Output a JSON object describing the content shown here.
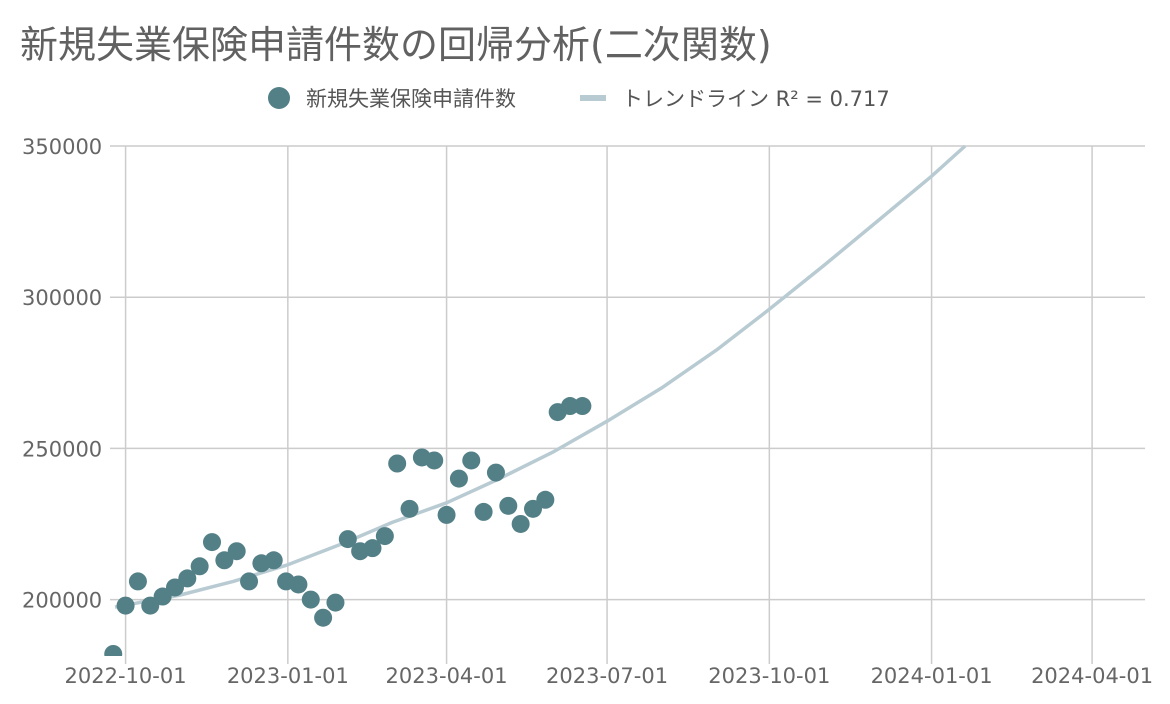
{
  "chart_data": {
    "type": "scatter",
    "title": "新規失業保険申請件数の回帰分析(二次関数)",
    "xlabel": "",
    "ylabel": "",
    "legend_position": "top",
    "grid": true,
    "x_axis_type": "date",
    "xlim": [
      "2022-09-25",
      "2024-05-01"
    ],
    "ylim": [
      182000,
      350000
    ],
    "y_ticks": [
      200000,
      250000,
      300000,
      350000
    ],
    "x_ticks": [
      "2022-10-01",
      "2023-01-01",
      "2023-04-01",
      "2023-07-01",
      "2023-10-01",
      "2024-01-01",
      "2024-04-01"
    ],
    "colors": {
      "points": "#537f87",
      "trendline": "#b9cbd2",
      "grid": "#cccccc"
    },
    "series": [
      {
        "name": "新規失業保険申請件数",
        "type": "scatter",
        "points": [
          {
            "x": "2022-09-24",
            "y": 182000
          },
          {
            "x": "2022-10-01",
            "y": 198000
          },
          {
            "x": "2022-10-08",
            "y": 206000
          },
          {
            "x": "2022-10-15",
            "y": 198000
          },
          {
            "x": "2022-10-22",
            "y": 201000
          },
          {
            "x": "2022-10-29",
            "y": 204000
          },
          {
            "x": "2022-11-05",
            "y": 207000
          },
          {
            "x": "2022-11-12",
            "y": 211000
          },
          {
            "x": "2022-11-19",
            "y": 219000
          },
          {
            "x": "2022-11-26",
            "y": 213000
          },
          {
            "x": "2022-12-03",
            "y": 216000
          },
          {
            "x": "2022-12-10",
            "y": 206000
          },
          {
            "x": "2022-12-17",
            "y": 212000
          },
          {
            "x": "2022-12-24",
            "y": 213000
          },
          {
            "x": "2022-12-31",
            "y": 206000
          },
          {
            "x": "2023-01-07",
            "y": 205000
          },
          {
            "x": "2023-01-14",
            "y": 200000
          },
          {
            "x": "2023-01-21",
            "y": 194000
          },
          {
            "x": "2023-01-28",
            "y": 199000
          },
          {
            "x": "2023-02-04",
            "y": 220000
          },
          {
            "x": "2023-02-11",
            "y": 216000
          },
          {
            "x": "2023-02-18",
            "y": 217000
          },
          {
            "x": "2023-02-25",
            "y": 221000
          },
          {
            "x": "2023-03-04",
            "y": 245000
          },
          {
            "x": "2023-03-11",
            "y": 230000
          },
          {
            "x": "2023-03-18",
            "y": 247000
          },
          {
            "x": "2023-03-25",
            "y": 246000
          },
          {
            "x": "2023-04-01",
            "y": 228000
          },
          {
            "x": "2023-04-08",
            "y": 240000
          },
          {
            "x": "2023-04-15",
            "y": 246000
          },
          {
            "x": "2023-04-22",
            "y": 229000
          },
          {
            "x": "2023-04-29",
            "y": 242000
          },
          {
            "x": "2023-05-06",
            "y": 231000
          },
          {
            "x": "2023-05-13",
            "y": 225000
          },
          {
            "x": "2023-05-20",
            "y": 230000
          },
          {
            "x": "2023-05-27",
            "y": 233000
          },
          {
            "x": "2023-06-03",
            "y": 262000
          },
          {
            "x": "2023-06-10",
            "y": 264000
          },
          {
            "x": "2023-06-17",
            "y": 264000
          }
        ]
      },
      {
        "name": "トレンドライン R² = 0.717",
        "type": "line",
        "points": [
          {
            "x": "2022-09-25",
            "y": 197500
          },
          {
            "x": "2022-11-01",
            "y": 201500
          },
          {
            "x": "2022-12-01",
            "y": 206000
          },
          {
            "x": "2023-01-01",
            "y": 211500
          },
          {
            "x": "2023-02-01",
            "y": 218500
          },
          {
            "x": "2023-03-01",
            "y": 225500
          },
          {
            "x": "2023-04-01",
            "y": 232000
          },
          {
            "x": "2023-05-01",
            "y": 240000
          },
          {
            "x": "2023-06-01",
            "y": 249000
          },
          {
            "x": "2023-07-01",
            "y": 259000
          },
          {
            "x": "2023-08-01",
            "y": 270000
          },
          {
            "x": "2023-09-01",
            "y": 282500
          },
          {
            "x": "2023-10-01",
            "y": 296000
          },
          {
            "x": "2023-11-01",
            "y": 310500
          },
          {
            "x": "2023-12-01",
            "y": 325000
          },
          {
            "x": "2024-01-01",
            "y": 340000
          },
          {
            "x": "2024-01-20",
            "y": 350000
          }
        ]
      }
    ]
  }
}
